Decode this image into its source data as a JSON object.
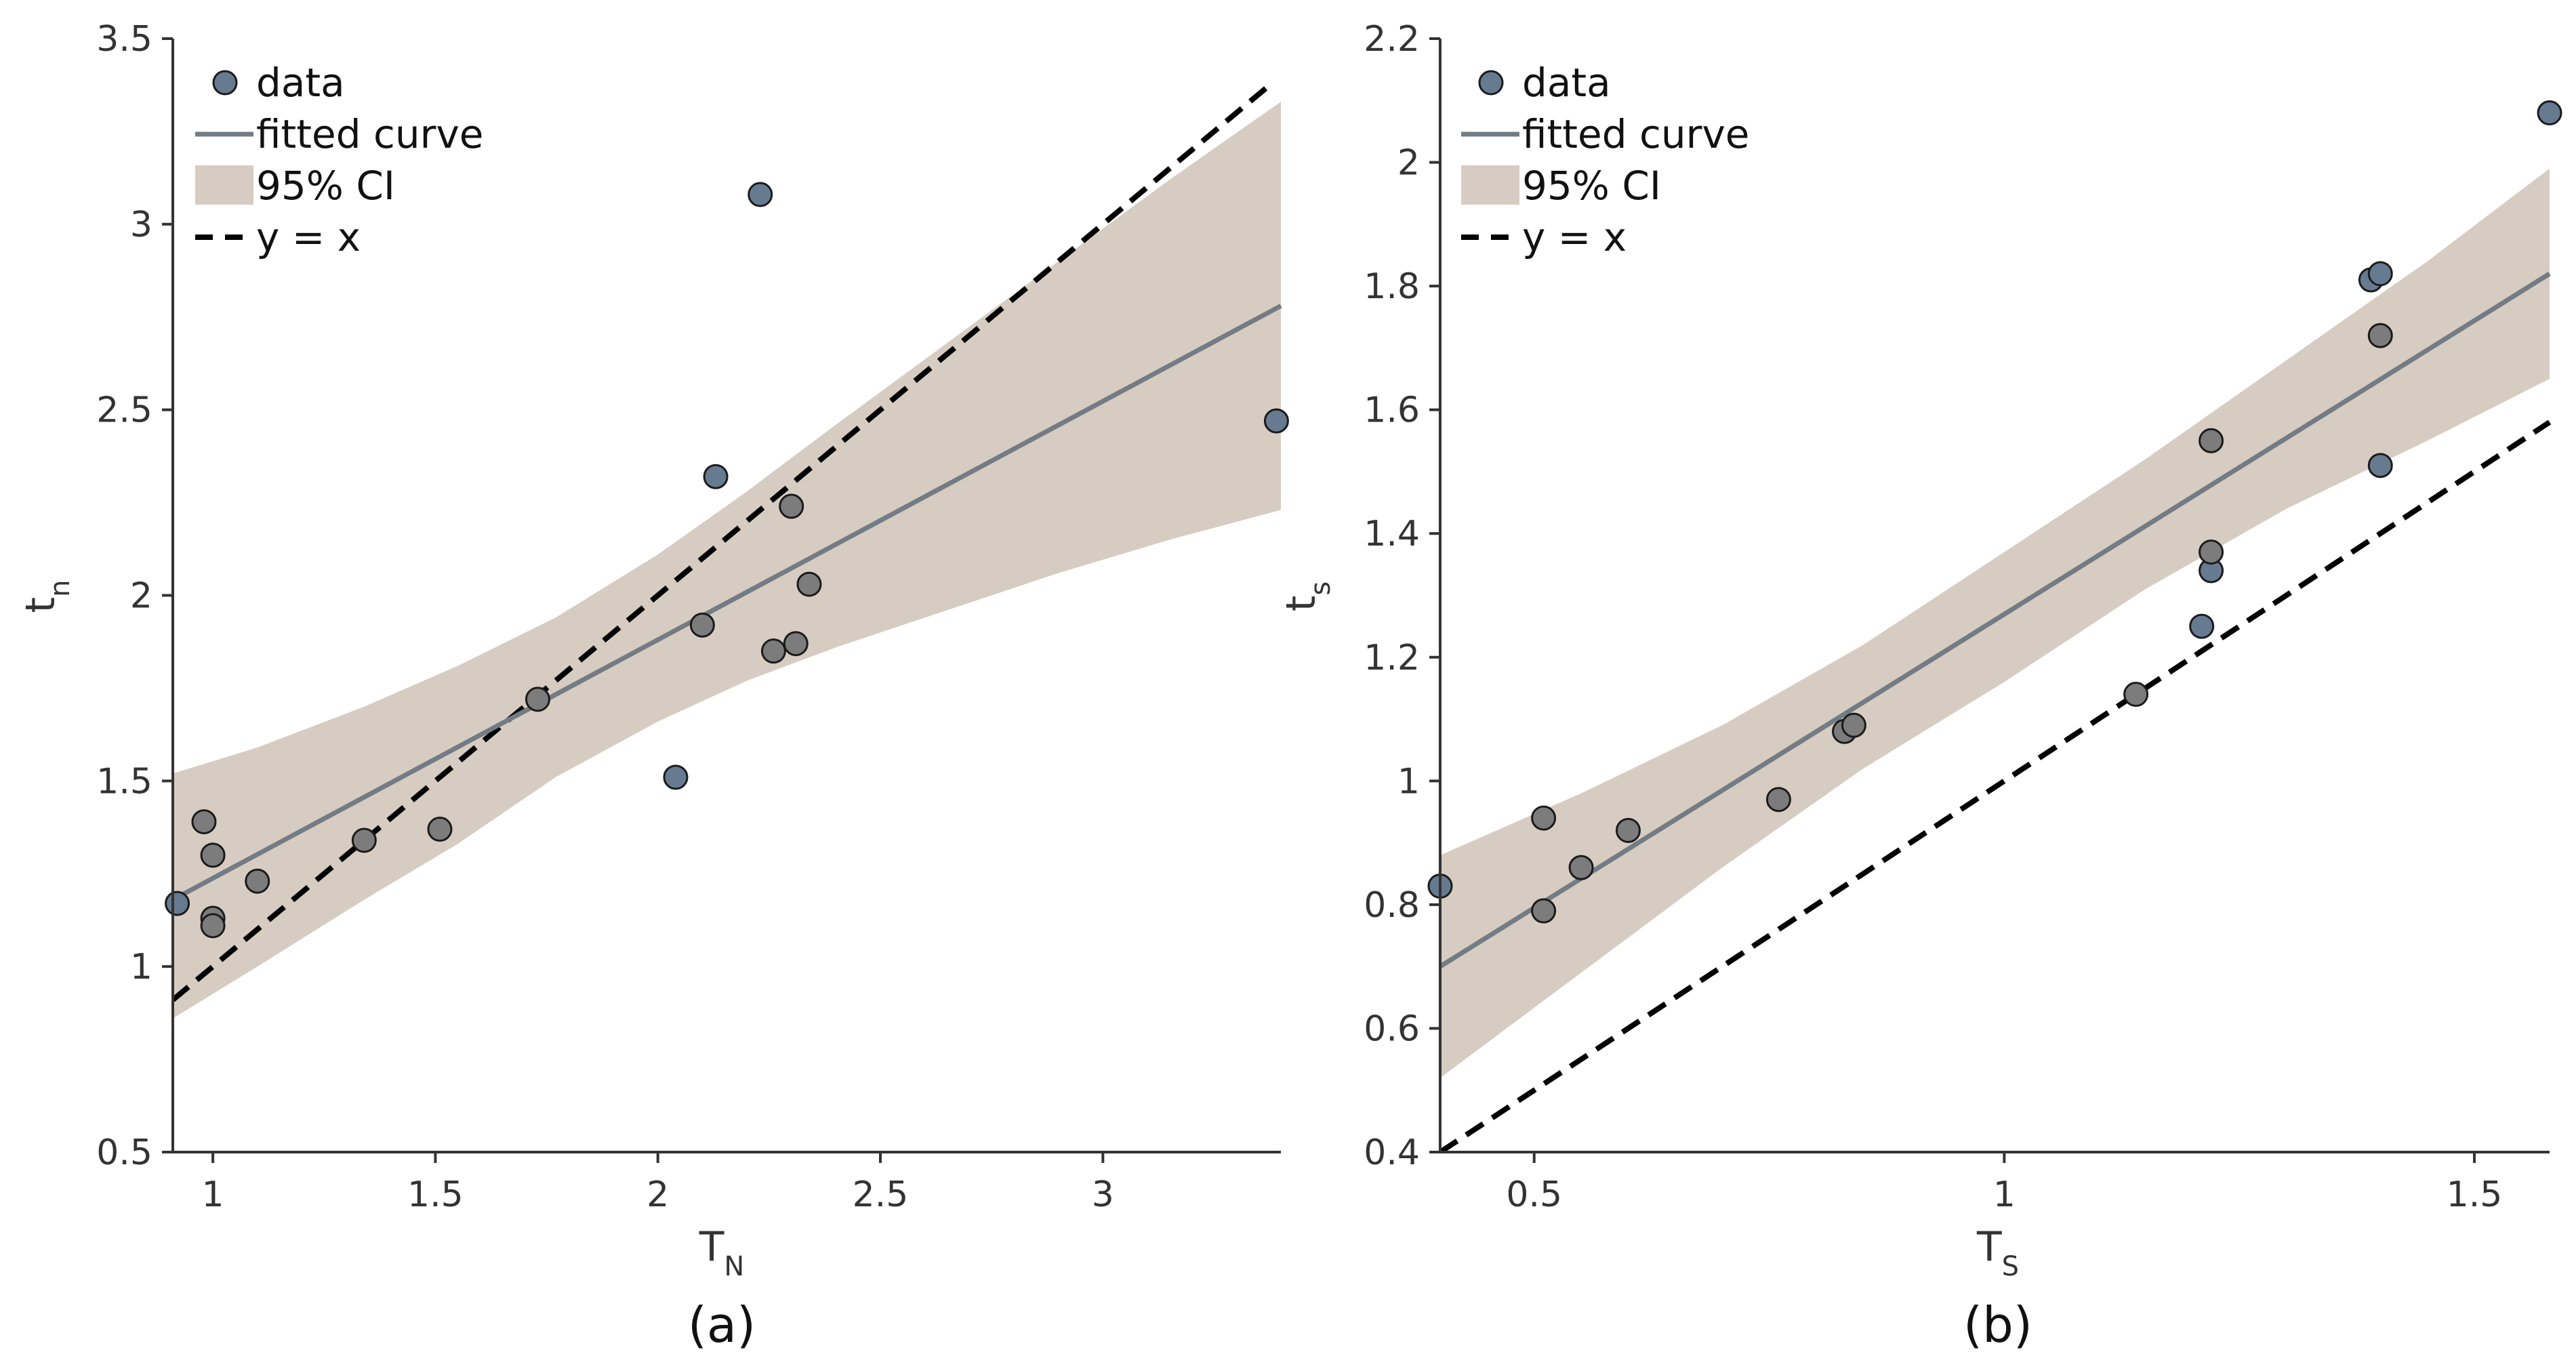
{
  "colors": {
    "point_fill": "#667a90",
    "point_fill_gray": "#7c7c7c",
    "point_edge": "#1b1b1b",
    "fit_line": "#737c84",
    "ci_fill": "#d7ccc1",
    "identity_line": "#000000",
    "axis": "#333333"
  },
  "chart_data": [
    {
      "type": "scatter",
      "panel_label": "(a)",
      "xlabel": "T",
      "xlabel_sub": "N",
      "ylabel": "t",
      "ylabel_sub": "n",
      "xlim": [
        0.91,
        3.4
      ],
      "ylim": [
        0.5,
        3.5
      ],
      "xticks": [
        1,
        1.5,
        2,
        2.5,
        3
      ],
      "xtick_labels": [
        "1",
        "1.5",
        "2",
        "2.5",
        "3"
      ],
      "yticks": [
        0.5,
        1,
        1.5,
        2,
        2.5,
        3,
        3.5
      ],
      "ytick_labels": [
        "0.5",
        "1",
        "1.5",
        "2",
        "2.5",
        "3",
        "3.5"
      ],
      "legend": {
        "placement": "top-left",
        "entries": [
          {
            "label": "data",
            "kind": "marker"
          },
          {
            "label": "fitted curve",
            "kind": "line"
          },
          {
            "label": "95% CI",
            "kind": "patch"
          },
          {
            "label": "y = x",
            "kind": "dashed"
          }
        ]
      },
      "points": [
        {
          "x": 0.92,
          "y": 1.17,
          "tone": "blue"
        },
        {
          "x": 0.98,
          "y": 1.39,
          "tone": "gray"
        },
        {
          "x": 1.0,
          "y": 1.3,
          "tone": "gray"
        },
        {
          "x": 1.0,
          "y": 1.13,
          "tone": "gray"
        },
        {
          "x": 1.0,
          "y": 1.11,
          "tone": "gray"
        },
        {
          "x": 1.1,
          "y": 1.23,
          "tone": "gray"
        },
        {
          "x": 1.34,
          "y": 1.34,
          "tone": "gray"
        },
        {
          "x": 1.51,
          "y": 1.37,
          "tone": "gray"
        },
        {
          "x": 1.73,
          "y": 1.72,
          "tone": "gray"
        },
        {
          "x": 2.04,
          "y": 1.51,
          "tone": "blue"
        },
        {
          "x": 2.1,
          "y": 1.92,
          "tone": "gray"
        },
        {
          "x": 2.13,
          "y": 2.32,
          "tone": "blue"
        },
        {
          "x": 2.23,
          "y": 3.08,
          "tone": "blue"
        },
        {
          "x": 2.26,
          "y": 1.85,
          "tone": "gray"
        },
        {
          "x": 2.3,
          "y": 2.24,
          "tone": "gray"
        },
        {
          "x": 2.31,
          "y": 1.87,
          "tone": "gray"
        },
        {
          "x": 2.34,
          "y": 2.03,
          "tone": "gray"
        },
        {
          "x": 3.39,
          "y": 2.47,
          "tone": "blue"
        }
      ],
      "fit": {
        "x": [
          0.91,
          3.4
        ],
        "y": [
          1.18,
          2.78
        ]
      },
      "ci": {
        "x": [
          0.91,
          1.1,
          1.34,
          1.55,
          1.77,
          2.0,
          2.2,
          2.4,
          2.65,
          2.9,
          3.15,
          3.4
        ],
        "lower": [
          0.86,
          1.0,
          1.18,
          1.33,
          1.51,
          1.66,
          1.77,
          1.86,
          1.96,
          2.06,
          2.15,
          2.23
        ],
        "upper": [
          1.52,
          1.59,
          1.7,
          1.81,
          1.94,
          2.11,
          2.28,
          2.46,
          2.68,
          2.9,
          3.12,
          3.33
        ]
      },
      "identity": {
        "x": [
          0.91,
          3.38
        ],
        "y": [
          0.91,
          3.38
        ]
      }
    },
    {
      "type": "scatter",
      "panel_label": "(b)",
      "xlabel": "T",
      "xlabel_sub": "S",
      "ylabel": "t",
      "ylabel_sub": "s",
      "xlim": [
        0.4,
        1.58
      ],
      "ylim": [
        0.4,
        2.2
      ],
      "xticks": [
        0.5,
        1,
        1.5
      ],
      "xtick_labels": [
        "0.5",
        "1",
        "1.5"
      ],
      "yticks": [
        0.4,
        0.6,
        0.8,
        1.0,
        1.2,
        1.4,
        1.6,
        1.8,
        2.0,
        2.2
      ],
      "ytick_labels": [
        "0.4",
        "0.6",
        "0.8",
        "1",
        "1.2",
        "1.4",
        "1.6",
        "1.8",
        "2",
        "2.2"
      ],
      "legend": {
        "placement": "top-left",
        "entries": [
          {
            "label": "data",
            "kind": "marker"
          },
          {
            "label": "fitted curve",
            "kind": "line"
          },
          {
            "label": "95% CI",
            "kind": "patch"
          },
          {
            "label": "y = x",
            "kind": "dashed"
          }
        ]
      },
      "points": [
        {
          "x": 0.4,
          "y": 0.83,
          "tone": "blue"
        },
        {
          "x": 0.51,
          "y": 0.94,
          "tone": "gray"
        },
        {
          "x": 0.51,
          "y": 0.79,
          "tone": "gray"
        },
        {
          "x": 0.55,
          "y": 0.86,
          "tone": "gray"
        },
        {
          "x": 0.6,
          "y": 0.92,
          "tone": "gray"
        },
        {
          "x": 0.76,
          "y": 0.97,
          "tone": "gray"
        },
        {
          "x": 0.83,
          "y": 1.08,
          "tone": "gray"
        },
        {
          "x": 0.84,
          "y": 1.09,
          "tone": "gray"
        },
        {
          "x": 1.14,
          "y": 1.14,
          "tone": "gray"
        },
        {
          "x": 1.21,
          "y": 1.25,
          "tone": "blue"
        },
        {
          "x": 1.22,
          "y": 1.34,
          "tone": "blue"
        },
        {
          "x": 1.22,
          "y": 1.37,
          "tone": "gray"
        },
        {
          "x": 1.22,
          "y": 1.55,
          "tone": "gray"
        },
        {
          "x": 1.39,
          "y": 1.81,
          "tone": "blue"
        },
        {
          "x": 1.4,
          "y": 1.82,
          "tone": "blue"
        },
        {
          "x": 1.4,
          "y": 1.72,
          "tone": "gray"
        },
        {
          "x": 1.4,
          "y": 1.51,
          "tone": "blue"
        },
        {
          "x": 1.58,
          "y": 2.08,
          "tone": "blue"
        }
      ],
      "fit": {
        "x": [
          0.4,
          1.58
        ],
        "y": [
          0.7,
          1.82
        ]
      },
      "ci": {
        "x": [
          0.4,
          0.55,
          0.7,
          0.85,
          1.0,
          1.15,
          1.3,
          1.45,
          1.58
        ],
        "lower": [
          0.52,
          0.69,
          0.86,
          1.02,
          1.16,
          1.31,
          1.44,
          1.55,
          1.65
        ],
        "upper": [
          0.88,
          0.98,
          1.09,
          1.22,
          1.37,
          1.52,
          1.68,
          1.84,
          1.99
        ]
      },
      "identity": {
        "x": [
          0.4,
          1.58
        ],
        "y": [
          0.4,
          1.58
        ]
      }
    }
  ]
}
